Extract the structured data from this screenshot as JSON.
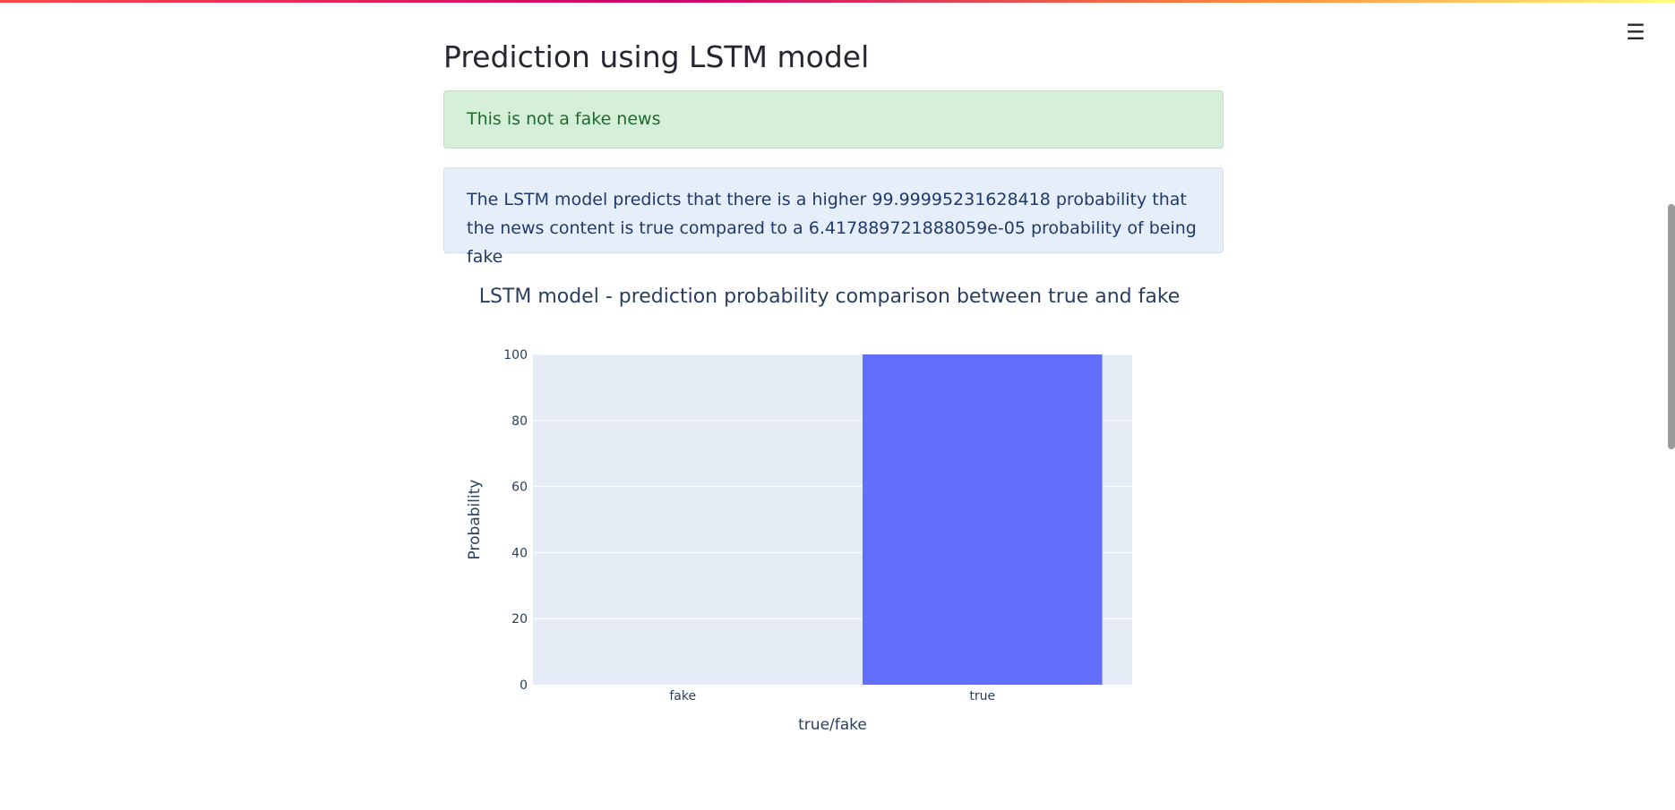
{
  "header": {
    "menu_icon": "hamburger-menu-icon",
    "menu_glyph": "☰"
  },
  "main": {
    "title": "Prediction using LSTM model",
    "success_message": "This is not a fake news",
    "info_message": "The LSTM model predicts that there is a higher 99.99995231628418 probability that the news content is true compared to a 6.417889721888059e-05 probability of being fake"
  },
  "colors": {
    "bar": "#636efa",
    "plot_bg": "#e5ecf6",
    "text": "#2a3f5f"
  },
  "chart_data": {
    "type": "bar",
    "title": "LSTM model - prediction probability comparison between true and fake",
    "categories": [
      "fake",
      "true"
    ],
    "values": [
      6.417889721888059e-05,
      99.99995231628418
    ],
    "xlabel": "true/fake",
    "ylabel": "Probability",
    "ylim": [
      0,
      100
    ],
    "yticks": [
      0,
      20,
      40,
      60,
      80,
      100
    ],
    "grid": true,
    "legend": "none"
  }
}
